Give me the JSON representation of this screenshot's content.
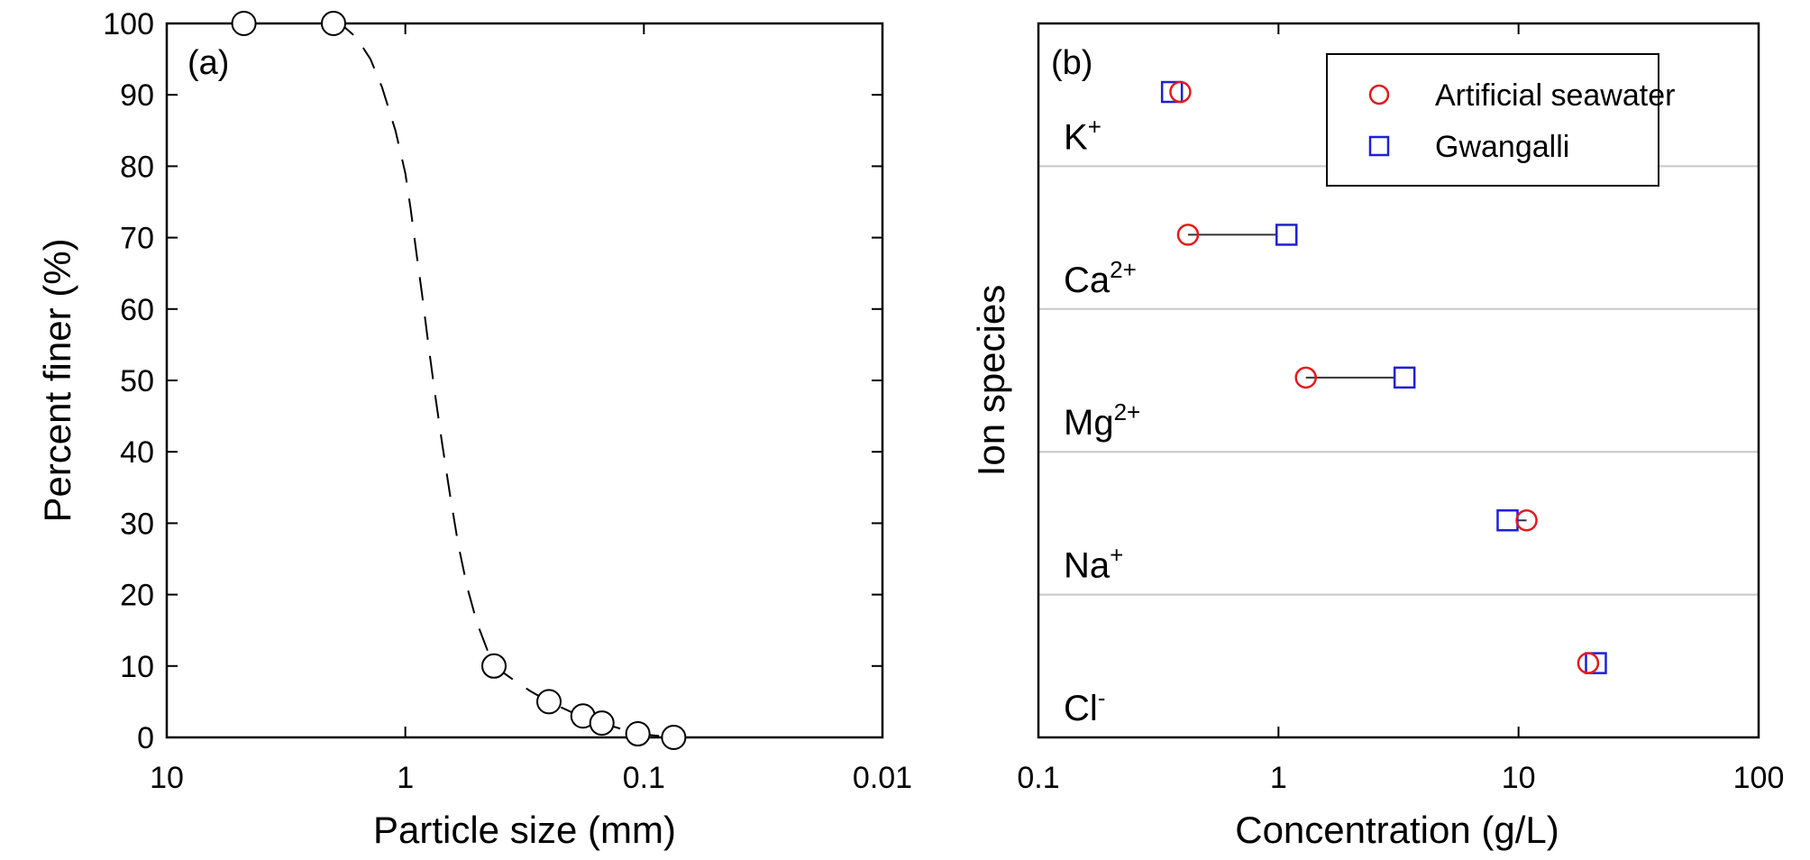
{
  "chart_data": [
    {
      "type": "scatter",
      "panel_label": "(a)",
      "xlabel": "Particle size (mm)",
      "ylabel": "Percent finer (%)",
      "x_scale": "log",
      "x_reversed": true,
      "xlim": [
        10,
        0.01
      ],
      "ylim": [
        0,
        100
      ],
      "x_ticks": [
        "10",
        "1",
        "0.1",
        "0.01"
      ],
      "y_ticks": [
        "0",
        "10",
        "20",
        "30",
        "40",
        "50",
        "60",
        "70",
        "80",
        "90",
        "100"
      ],
      "grid": false,
      "series": [
        {
          "marker": "open circle",
          "x": [
            4.75,
            2.0,
            0.425,
            0.25,
            0.18,
            0.15,
            0.106,
            0.075
          ],
          "y": [
            100,
            100,
            10,
            5,
            3,
            2,
            0.5,
            0
          ]
        }
      ],
      "fit_curve": {
        "style": "dashed",
        "x": [
          2.0,
          1.8,
          1.6,
          1.4,
          1.25,
          1.1,
          1.0,
          0.95,
          0.9,
          0.85,
          0.8,
          0.75,
          0.7,
          0.65,
          0.6,
          0.55,
          0.5,
          0.45,
          0.425,
          0.35,
          0.3,
          0.25,
          0.2,
          0.15,
          0.106,
          0.075
        ],
        "y": [
          100,
          99.5,
          98,
          95,
          91,
          85,
          79,
          74,
          68,
          62,
          55,
          48,
          41,
          34,
          27,
          21,
          16,
          12,
          10,
          8,
          6.5,
          5,
          3.5,
          2,
          0.5,
          0
        ]
      }
    },
    {
      "type": "scatter",
      "panel_label": "(b)",
      "xlabel": "Concentration (g/L)",
      "ylabel": "Ion species",
      "x_scale": "log",
      "xlim": [
        0.1,
        100
      ],
      "x_ticks": [
        "0.1",
        "1",
        "10",
        "100"
      ],
      "categories": [
        {
          "base": "K",
          "sup": "+"
        },
        {
          "base": "Ca",
          "sup": "2+"
        },
        {
          "base": "Mg",
          "sup": "2+"
        },
        {
          "base": "Na",
          "sup": "+"
        },
        {
          "base": "Cl",
          "sup": "-"
        }
      ],
      "legend_position": "top-right",
      "series": [
        {
          "name": "Artificial seawater",
          "marker": "circle",
          "color": "#e31a1c",
          "values": [
            0.39,
            0.42,
            1.3,
            10.8,
            19.5
          ]
        },
        {
          "name": "Gwangalli",
          "marker": "square",
          "color": "#1f1fd6",
          "values": [
            0.36,
            1.08,
            3.35,
            9.0,
            21.0
          ]
        }
      ]
    }
  ]
}
